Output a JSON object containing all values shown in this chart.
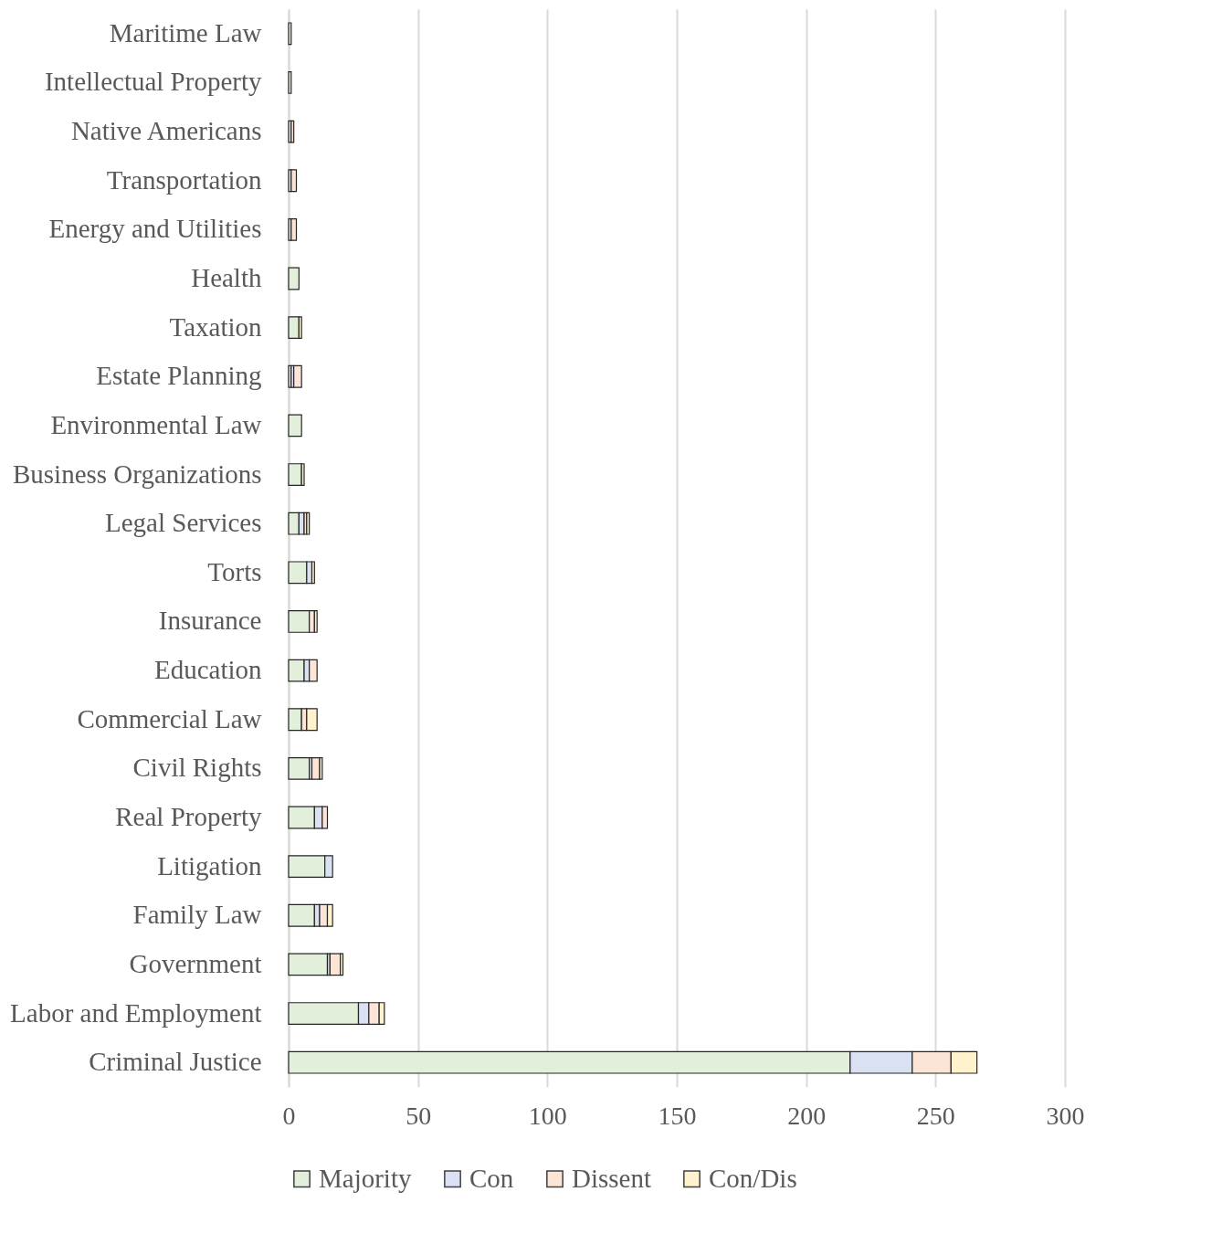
{
  "chart_data": {
    "type": "bar",
    "orientation": "horizontal",
    "stacked": true,
    "categories": [
      "Maritime Law",
      "Intellectual Property",
      "Native Americans",
      "Transportation",
      "Energy and Utilities",
      "Health",
      "Taxation",
      "Estate Planning",
      "Environmental Law",
      "Business Organizations",
      "Legal Services",
      "Torts",
      "Insurance",
      "Education",
      "Commercial Law",
      "Civil Rights",
      "Real Property",
      "Litigation",
      "Family Law",
      "Government",
      "Labor and Employment",
      "Criminal Justice"
    ],
    "series": [
      {
        "name": "Majority",
        "color": "#e2efda",
        "values": [
          1,
          1,
          1,
          1,
          1,
          4,
          4,
          1,
          5,
          5,
          4,
          7,
          8,
          6,
          5,
          8,
          10,
          14,
          10,
          15,
          27,
          217
        ]
      },
      {
        "name": "Con",
        "color": "#d9e1f2",
        "values": [
          null,
          null,
          null,
          null,
          null,
          null,
          null,
          1,
          null,
          null,
          2,
          2,
          null,
          2,
          null,
          1,
          3,
          3,
          2,
          1,
          4,
          24
        ]
      },
      {
        "name": "Dissent",
        "color": "#fce4d6",
        "values": [
          null,
          null,
          1,
          2,
          2,
          null,
          null,
          3,
          null,
          null,
          1,
          null,
          2,
          3,
          2,
          3,
          2,
          null,
          3,
          4,
          4,
          15
        ]
      },
      {
        "name": "Con/Dis",
        "color": "#fff2cc",
        "values": [
          null,
          null,
          null,
          null,
          null,
          null,
          1,
          null,
          null,
          1,
          1,
          1,
          1,
          null,
          4,
          1,
          null,
          null,
          2,
          1,
          2,
          10
        ]
      }
    ],
    "xlim": [
      0,
      300
    ],
    "xticks": [
      0,
      50,
      100,
      150,
      200,
      250,
      300
    ],
    "grid": "x",
    "legend": "bottom"
  }
}
